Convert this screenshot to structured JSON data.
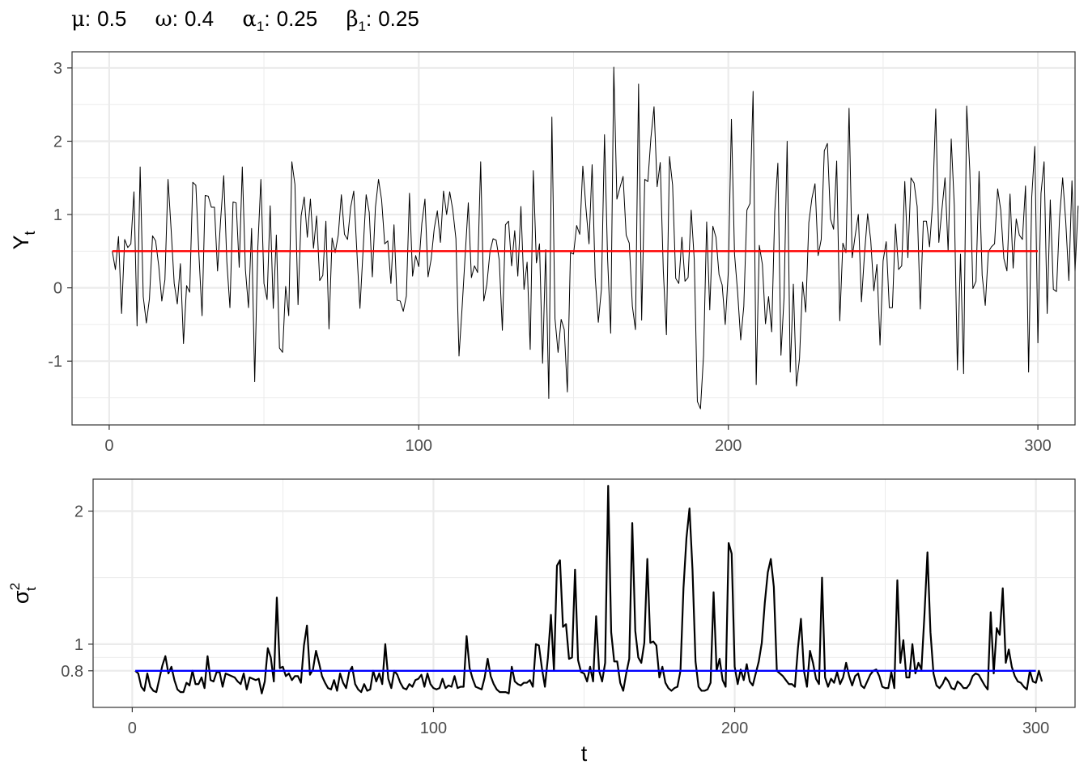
{
  "params": [
    {
      "symbol": "μ",
      "sub": "",
      "value": "0.5"
    },
    {
      "symbol": "ω",
      "sub": "",
      "value": "0.4"
    },
    {
      "symbol": "α",
      "sub": "1",
      "value": "0.25"
    },
    {
      "symbol": "β",
      "sub": "1",
      "value": "0.25"
    }
  ],
  "colors": {
    "mean_line": "#ff0000",
    "variance_line": "#0000ff",
    "series": "#000000",
    "grid": "#ebebeb"
  },
  "chart_data": [
    {
      "type": "line",
      "ylabel": "Y",
      "ylabel_sub": "t",
      "xlabel": "",
      "xlim": [
        -12,
        312
      ],
      "ylim": [
        -1.87,
        3.22
      ],
      "x_ticks": [
        0,
        100,
        200,
        300
      ],
      "x_tick_labels": [
        "0",
        "100",
        "200",
        "300"
      ],
      "y_ticks": [
        -1,
        0,
        1,
        2,
        3
      ],
      "y_tick_labels": [
        "-1",
        "0",
        "1",
        "2",
        "3"
      ],
      "grid": true,
      "hline": {
        "y": 0.5,
        "color": "#ff0000",
        "x": [
          1,
          300
        ]
      },
      "series": [
        {
          "x_start": 1,
          "values": [
            0.5,
            0.25,
            0.7,
            -0.35,
            0.66,
            0.55,
            0.6,
            1.31,
            -0.52,
            1.65,
            -0.12,
            -0.48,
            -0.15,
            0.71,
            0.64,
            0.3,
            -0.18,
            0.11,
            1.48,
            0.8,
            0.06,
            -0.22,
            0.33,
            -0.76,
            0.03,
            -0.06,
            1.44,
            1.4,
            0.44,
            -0.38,
            1.26,
            1.25,
            1.1,
            1.1,
            0.23,
            0.93,
            1.53,
            0.36,
            -0.27,
            1.17,
            1.16,
            0.28,
            1.65,
            0.25,
            -0.27,
            0.81,
            -1.28,
            0.54,
            1.48,
            0.06,
            -0.16,
            1.12,
            -0.28,
            0.72,
            -0.82,
            -0.88,
            0.02,
            -0.38,
            1.72,
            1.41,
            -0.23,
            0.98,
            1.24,
            0.69,
            1.21,
            0.54,
            0.98,
            0.1,
            0.17,
            0.91,
            -0.56,
            0.68,
            0.48,
            0.72,
            1.27,
            0.73,
            0.66,
            1.1,
            1.32,
            0.5,
            -0.28,
            0.5,
            1.27,
            1.03,
            0.15,
            1.1,
            1.48,
            1.2,
            0.6,
            0.64,
            0.06,
            0.86,
            -0.17,
            -0.18,
            -0.32,
            -0.11,
            1.29,
            0.16,
            0.44,
            0.29,
            0.88,
            1.21,
            0.15,
            0.39,
            0.81,
            1.05,
            0.62,
            1.32,
            1.0,
            1.31,
            1.06,
            0.67,
            -0.93,
            -0.27,
            0.45,
            1.16,
            0.14,
            0.3,
            0.21,
            1.72,
            -0.18,
            0.05,
            0.49,
            0.67,
            0.65,
            0.38,
            -0.58,
            0.86,
            0.91,
            0.3,
            0.78,
            0.16,
            1.11,
            -0.02,
            0.35,
            -0.84,
            1.6,
            0.34,
            0.6,
            -1.03,
            0.52,
            -1.51,
            2.33,
            -0.42,
            -0.88,
            -0.43,
            -0.57,
            -1.42,
            0.48,
            0.46,
            0.85,
            0.73,
            1.66,
            1.09,
            0.6,
            1.68,
            0.14,
            -0.47,
            -0.02,
            2.09,
            0.4,
            -0.62,
            3.01,
            1.21,
            1.37,
            1.52,
            0.72,
            0.61,
            -0.25,
            -0.57,
            2.78,
            -0.44,
            1.48,
            1.45,
            2.05,
            2.47,
            1.38,
            1.71,
            0.23,
            -0.64,
            1.79,
            1.4,
            0.13,
            0.06,
            0.69,
            0.09,
            0.14,
            1.06,
            0.38,
            -1.55,
            -1.65,
            -0.92,
            0.9,
            -0.3,
            0.84,
            0.69,
            0.18,
            0.04,
            -0.5,
            0.22,
            2.3,
            0.46,
            -0.06,
            -0.71,
            -0.25,
            1.06,
            1.15,
            2.68,
            -1.32,
            0.58,
            0.32,
            -0.49,
            -0.12,
            -0.6,
            1.04,
            1.7,
            -0.92,
            -0.13,
            2.0,
            -1.15,
            0.05,
            -1.34,
            -0.96,
            0.08,
            -0.33,
            0.89,
            1.22,
            1.42,
            0.44,
            0.66,
            1.87,
            1.97,
            0.94,
            0.8,
            1.73,
            -0.45,
            0.61,
            0.48,
            2.45,
            0.41,
            0.72,
            1.0,
            -0.19,
            0.47,
            1.01,
            0.65,
            -0.04,
            0.32,
            -0.78,
            0.37,
            0.63,
            -0.27,
            -0.27,
            0.87,
            0.25,
            0.3,
            1.45,
            0.41,
            1.5,
            1.43,
            1.11,
            -0.29,
            0.91,
            0.91,
            0.56,
            1.16,
            2.44,
            0.62,
            1.07,
            1.5,
            0.5,
            2.03,
            1.12,
            -1.12,
            0.46,
            -1.17,
            2.48,
            1.6,
            -0.01,
            0.09,
            1.59,
            0.17,
            -0.24,
            0.49,
            0.56,
            0.6,
            1.35,
            1.06,
            0.4,
            0.23,
            1.28,
            0.27,
            0.94,
            0.72,
            0.66,
            1.39,
            -1.15,
            1.23,
            1.93,
            -0.75,
            1.29,
            1.72,
            -0.35,
            1.2,
            -0.02,
            -0.05,
            0.96,
            1.5,
            0.9,
            0.1,
            1.46,
            0.22,
            1.12
          ]
        }
      ]
    },
    {
      "type": "line",
      "ylabel": "σ",
      "ylabel_sub": "t",
      "ylabel_sup": "2",
      "xlabel": "t",
      "xlim": [
        -13,
        313
      ],
      "ylim": [
        0.525,
        2.24
      ],
      "x_ticks": [
        0,
        100,
        200,
        300
      ],
      "x_tick_labels": [
        "0",
        "100",
        "200",
        "300"
      ],
      "y_ticks": [
        0.8,
        1,
        2
      ],
      "y_tick_labels": [
        "0.8",
        "1",
        "2"
      ],
      "grid": true,
      "hline": {
        "y": 0.8,
        "color": "#0000ff",
        "x": [
          1,
          300
        ]
      },
      "series": [
        {
          "x_start": 1,
          "values": [
            0.8,
            0.78,
            0.68,
            0.65,
            0.78,
            0.68,
            0.65,
            0.64,
            0.74,
            0.84,
            0.91,
            0.78,
            0.83,
            0.73,
            0.66,
            0.64,
            0.64,
            0.71,
            0.69,
            0.8,
            0.7,
            0.7,
            0.75,
            0.67,
            0.91,
            0.73,
            0.72,
            0.79,
            0.79,
            0.68,
            0.78,
            0.77,
            0.76,
            0.75,
            0.72,
            0.7,
            0.78,
            0.66,
            0.75,
            0.74,
            0.73,
            0.74,
            0.63,
            0.72,
            0.97,
            0.9,
            0.72,
            1.35,
            0.82,
            0.83,
            0.76,
            0.78,
            0.73,
            0.76,
            0.76,
            0.71,
            0.99,
            1.14,
            0.77,
            0.81,
            0.95,
            0.86,
            0.76,
            0.71,
            0.67,
            0.66,
            0.73,
            0.65,
            0.78,
            0.71,
            0.67,
            0.79,
            0.83,
            0.7,
            0.66,
            0.64,
            0.7,
            0.65,
            0.66,
            0.8,
            0.72,
            0.78,
            0.7,
            1.0,
            0.74,
            0.67,
            0.8,
            0.77,
            0.71,
            0.67,
            0.66,
            0.7,
            0.68,
            0.73,
            0.74,
            0.77,
            0.68,
            0.78,
            0.7,
            0.67,
            0.66,
            0.67,
            0.74,
            0.67,
            0.69,
            0.68,
            0.76,
            0.67,
            0.68,
            0.68,
            1.06,
            0.82,
            0.74,
            0.68,
            0.67,
            0.66,
            0.75,
            0.89,
            0.76,
            0.7,
            0.66,
            0.64,
            0.64,
            0.64,
            0.63,
            0.83,
            0.72,
            0.7,
            0.69,
            0.71,
            0.71,
            0.73,
            0.68,
            1.0,
            0.99,
            0.82,
            0.68,
            0.9,
            1.22,
            0.8,
            1.59,
            1.63,
            1.13,
            1.15,
            0.89,
            0.9,
            1.56,
            0.88,
            0.79,
            0.78,
            0.72,
            0.83,
            0.72,
            1.21,
            0.8,
            0.72,
            0.86,
            2.19,
            1.09,
            0.87,
            0.87,
            0.71,
            0.65,
            0.78,
            0.89,
            1.91,
            1.1,
            0.9,
            0.86,
            1.01,
            1.64,
            1.01,
            1.02,
            0.99,
            0.75,
            0.83,
            0.71,
            0.67,
            0.65,
            0.67,
            0.68,
            0.8,
            1.42,
            1.8,
            2.02,
            1.56,
            0.87,
            0.68,
            0.65,
            0.65,
            0.66,
            0.71,
            1.39,
            0.8,
            0.89,
            0.73,
            0.68,
            1.76,
            1.68,
            0.83,
            0.7,
            0.81,
            0.73,
            0.85,
            0.72,
            0.69,
            0.78,
            0.87,
            1.01,
            1.31,
            1.54,
            1.64,
            1.43,
            0.8,
            0.78,
            0.76,
            0.73,
            0.7,
            0.7,
            0.68,
            0.97,
            1.19,
            0.8,
            0.68,
            0.95,
            0.86,
            0.74,
            0.7,
            1.5,
            0.75,
            0.68,
            0.74,
            0.71,
            0.79,
            0.7,
            0.75,
            0.86,
            0.76,
            0.69,
            0.76,
            0.78,
            0.69,
            0.67,
            0.72,
            0.77,
            0.8,
            0.81,
            0.76,
            0.68,
            0.67,
            0.67,
            0.79,
            0.67,
            1.48,
            0.86,
            1.03,
            0.75,
            0.75,
            1.0,
            0.78,
            0.86,
            0.81,
            1.22,
            1.69,
            1.09,
            0.78,
            0.69,
            0.67,
            0.7,
            0.75,
            0.72,
            0.67,
            0.66,
            0.72,
            0.7,
            0.67,
            0.67,
            0.7,
            0.76,
            0.78,
            0.77,
            0.73,
            0.69,
            0.66,
            1.24,
            0.78,
            1.12,
            1.07,
            1.42,
            0.86,
            0.96,
            0.83,
            0.76,
            0.72,
            0.71,
            0.68,
            0.66,
            0.8,
            0.72,
            0.71,
            0.8,
            0.72
          ]
        }
      ]
    }
  ]
}
